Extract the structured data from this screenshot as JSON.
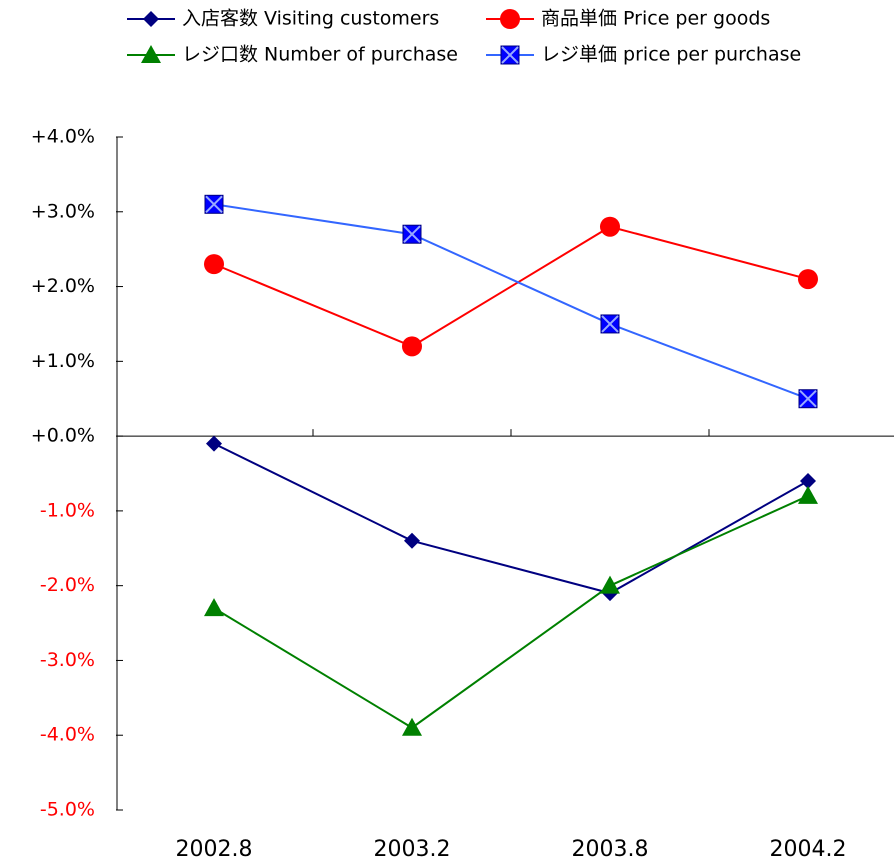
{
  "chart_data": {
    "type": "line",
    "categories": [
      "2002.8",
      "2003.2",
      "2003.8",
      "2004.2"
    ],
    "series": [
      {
        "name": "入店客数 Visiting customers",
        "color": "#000080",
        "marker": "diamond",
        "values": [
          -0.1,
          -1.4,
          -2.1,
          -0.6
        ]
      },
      {
        "name": "商品単価 Price per goods",
        "color": "#ff0000",
        "marker": "circle",
        "values": [
          2.3,
          1.2,
          2.8,
          2.1
        ]
      },
      {
        "name": "レジ口数 Number of purchase",
        "color": "#008000",
        "marker": "triangle",
        "values": [
          -2.3,
          -3.9,
          -2.0,
          -0.8
        ]
      },
      {
        "name": "レジ単価 price per purchase",
        "color": "#3366ff",
        "marker": "square-x",
        "values": [
          3.1,
          2.7,
          1.5,
          0.5
        ]
      }
    ],
    "ylim": [
      -5,
      4
    ],
    "yticks": [
      {
        "value": -5,
        "label": "-5.0%"
      },
      {
        "value": -4,
        "label": "-4.0%"
      },
      {
        "value": -3,
        "label": "-3.0%"
      },
      {
        "value": -2,
        "label": "-2.0%"
      },
      {
        "value": -1,
        "label": "-1.0%"
      },
      {
        "value": 0,
        "label": "+0.0%"
      },
      {
        "value": 1,
        "label": "+1.0%"
      },
      {
        "value": 2,
        "label": "+2.0%"
      },
      {
        "value": 3,
        "label": "+3.0%"
      },
      {
        "value": 4,
        "label": "+4.0%"
      }
    ],
    "negative_tick_label_color": "#ff0000",
    "legend": "top",
    "grid": false
  }
}
